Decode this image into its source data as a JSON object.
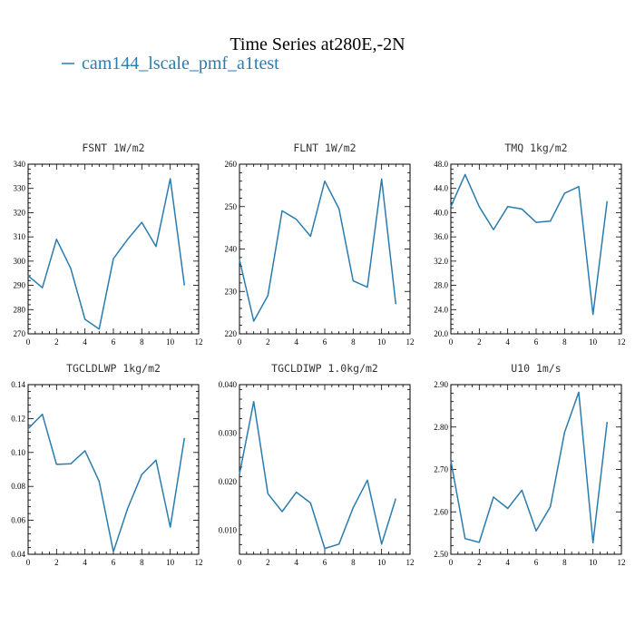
{
  "figure": {
    "title": "Time Series at280E,-2N",
    "legend_label": "cam144_lscale_pmf_a1test",
    "series_color": "#2a7cad"
  },
  "chart_data": [
    {
      "type": "line",
      "title": "FSNT   1W/m2",
      "x": [
        0,
        1,
        2,
        3,
        4,
        5,
        6,
        7,
        8,
        9,
        10,
        11
      ],
      "series": [
        {
          "name": "cam144_lscale_pmf_a1test",
          "values": [
            294,
            289,
            309,
            297,
            276,
            272,
            301,
            309,
            316,
            306,
            334,
            290
          ]
        }
      ],
      "xlim": [
        0,
        12
      ],
      "ylim": [
        270,
        340
      ],
      "xticks": [
        0,
        2,
        4,
        6,
        8,
        10,
        12
      ],
      "yticks": [
        270,
        280,
        290,
        300,
        310,
        320,
        330,
        340
      ],
      "ytick_labels": [
        "270",
        "280",
        "290",
        "300",
        "310",
        "320",
        "330",
        "340"
      ]
    },
    {
      "type": "line",
      "title": "FLNT   1W/m2",
      "x": [
        0,
        1,
        2,
        3,
        4,
        5,
        6,
        7,
        8,
        9,
        10,
        11
      ],
      "series": [
        {
          "name": "cam144_lscale_pmf_a1test",
          "values": [
            237.5,
            223,
            229,
            249,
            247,
            243,
            256,
            249.5,
            232.5,
            231,
            256.5,
            227
          ]
        }
      ],
      "xlim": [
        0,
        12
      ],
      "ylim": [
        220,
        260
      ],
      "xticks": [
        0,
        2,
        4,
        6,
        8,
        10,
        12
      ],
      "yticks": [
        220,
        230,
        240,
        250,
        260
      ],
      "ytick_labels": [
        "220",
        "230",
        "240",
        "250",
        "260"
      ]
    },
    {
      "type": "line",
      "title": "TMQ   1kg/m2",
      "x": [
        0,
        1,
        2,
        3,
        4,
        5,
        6,
        7,
        8,
        9,
        10,
        11
      ],
      "series": [
        {
          "name": "cam144_lscale_pmf_a1test",
          "values": [
            41,
            46.3,
            41,
            37.2,
            41,
            40.6,
            38.4,
            38.6,
            43.2,
            44.3,
            23.2,
            41.9
          ]
        }
      ],
      "xlim": [
        0,
        12
      ],
      "ylim": [
        20,
        48
      ],
      "xticks": [
        0,
        2,
        4,
        6,
        8,
        10,
        12
      ],
      "yticks": [
        20,
        24,
        28,
        32,
        36,
        40,
        44,
        48
      ],
      "ytick_labels": [
        "20.0",
        "24.0",
        "28.0",
        "32.0",
        "36.0",
        "40.0",
        "44.0",
        "48.0"
      ]
    },
    {
      "type": "line",
      "title": "TGCLDLWP   1kg/m2",
      "x": [
        0,
        1,
        2,
        3,
        4,
        5,
        6,
        7,
        8,
        9,
        10,
        11
      ],
      "series": [
        {
          "name": "cam144_lscale_pmf_a1test",
          "values": [
            0.114,
            0.1225,
            0.093,
            0.0933,
            0.101,
            0.083,
            0.0415,
            0.067,
            0.087,
            0.0955,
            0.056,
            0.1085
          ]
        }
      ],
      "xlim": [
        0,
        12
      ],
      "ylim": [
        0.04,
        0.14
      ],
      "xticks": [
        0,
        2,
        4,
        6,
        8,
        10,
        12
      ],
      "yticks": [
        0.04,
        0.06,
        0.08,
        0.1,
        0.12,
        0.14
      ],
      "ytick_labels": [
        "0.04",
        "0.06",
        "0.08",
        "0.10",
        "0.12",
        "0.14"
      ]
    },
    {
      "type": "line",
      "title": "TGCLDIWP   1.0kg/m2",
      "x": [
        0,
        1,
        2,
        3,
        4,
        5,
        6,
        7,
        8,
        9,
        10,
        11
      ],
      "series": [
        {
          "name": "cam144_lscale_pmf_a1test",
          "values": [
            0.0215,
            0.0365,
            0.0175,
            0.0138,
            0.0178,
            0.0156,
            0.0062,
            0.0071,
            0.0146,
            0.0203,
            0.0071,
            0.0165
          ]
        }
      ],
      "xlim": [
        0,
        12
      ],
      "ylim": [
        0.005,
        0.04
      ],
      "xticks": [
        0,
        2,
        4,
        6,
        8,
        10,
        12
      ],
      "yticks": [
        0.01,
        0.02,
        0.03,
        0.04
      ],
      "ytick_labels": [
        "0.010",
        "0.020",
        "0.030",
        "0.040"
      ]
    },
    {
      "type": "line",
      "title": "U10   1m/s",
      "x": [
        0,
        1,
        2,
        3,
        4,
        5,
        6,
        7,
        8,
        9,
        10,
        11
      ],
      "series": [
        {
          "name": "cam144_lscale_pmf_a1test",
          "values": [
            2.72,
            2.537,
            2.528,
            2.635,
            2.608,
            2.651,
            2.555,
            2.612,
            2.787,
            2.882,
            2.527,
            2.812
          ]
        }
      ],
      "xlim": [
        0,
        12
      ],
      "ylim": [
        2.5,
        2.9
      ],
      "xticks": [
        0,
        2,
        4,
        6,
        8,
        10,
        12
      ],
      "yticks": [
        2.5,
        2.6,
        2.7,
        2.8,
        2.9
      ],
      "ytick_labels": [
        "2.50",
        "2.60",
        "2.70",
        "2.80",
        "2.90"
      ]
    }
  ]
}
